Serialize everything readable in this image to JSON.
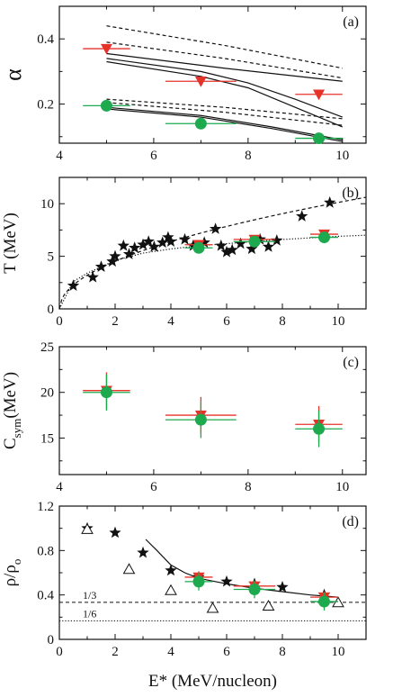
{
  "figure": {
    "colors": {
      "red": "#e63329",
      "green": "#1daa4f",
      "black": "#111111"
    }
  },
  "chart_data": [
    {
      "type": "scatter",
      "panel_label": "(a)",
      "ylabel": "α",
      "xlim": [
        4,
        10.5
      ],
      "ylim": [
        0.08,
        0.5
      ],
      "xticks": [
        4,
        6,
        8,
        10
      ],
      "yticks": [
        0.2,
        0.4
      ],
      "series": [
        {
          "marker": "triangle-down",
          "color": "red",
          "points": [
            {
              "x": 5.0,
              "y": 0.37,
              "xerr": 0.5
            },
            {
              "x": 7.0,
              "y": 0.27,
              "xerr": 0.75
            },
            {
              "x": 9.5,
              "y": 0.23,
              "xerr": 0.5
            }
          ]
        },
        {
          "marker": "circle",
          "color": "green",
          "points": [
            {
              "x": 5.0,
              "y": 0.195,
              "xerr": 0.5
            },
            {
              "x": 7.0,
              "y": 0.14,
              "xerr": 0.75
            },
            {
              "x": 9.5,
              "y": 0.095,
              "xerr": 0.5
            }
          ]
        }
      ],
      "curves": [
        {
          "style": "dashed",
          "x": [
            5.0,
            7.5,
            10.0
          ],
          "y": [
            0.44,
            0.38,
            0.31
          ]
        },
        {
          "style": "dashed",
          "x": [
            5.0,
            7.5,
            10.0
          ],
          "y": [
            0.39,
            0.34,
            0.28
          ]
        },
        {
          "style": "solid",
          "x": [
            5.0,
            7.5,
            10.0
          ],
          "y": [
            0.355,
            0.31,
            0.27
          ]
        },
        {
          "style": "solid",
          "x": [
            5.0,
            7.0,
            8.0,
            9.0,
            10.0
          ],
          "y": [
            0.34,
            0.3,
            0.265,
            0.215,
            0.16
          ]
        },
        {
          "style": "solid",
          "x": [
            5.0,
            7.0,
            8.0,
            9.0,
            10.0
          ],
          "y": [
            0.33,
            0.285,
            0.25,
            0.19,
            0.13
          ]
        },
        {
          "style": "dashed",
          "x": [
            5.0,
            7.5,
            10.0
          ],
          "y": [
            0.215,
            0.19,
            0.155
          ]
        },
        {
          "style": "dashed",
          "x": [
            5.0,
            7.5,
            10.0
          ],
          "y": [
            0.205,
            0.175,
            0.135
          ]
        },
        {
          "style": "solid",
          "x": [
            5.0,
            7.0,
            8.5,
            10.0
          ],
          "y": [
            0.19,
            0.165,
            0.13,
            0.09
          ]
        },
        {
          "style": "solid",
          "x": [
            5.0,
            7.0,
            8.5,
            10.0
          ],
          "y": [
            0.185,
            0.16,
            0.125,
            0.085
          ]
        }
      ]
    },
    {
      "type": "scatter",
      "panel_label": "(b)",
      "ylabel": "T (MeV)",
      "xlim": [
        0,
        11
      ],
      "ylim": [
        0,
        12.5
      ],
      "xticks": [
        0,
        2,
        4,
        6,
        8,
        10
      ],
      "yticks": [
        0,
        5,
        10
      ],
      "series": [
        {
          "marker": "star",
          "color": "black",
          "points": [
            {
              "x": 0.5,
              "y": 2.2
            },
            {
              "x": 1.2,
              "y": 3.0
            },
            {
              "x": 1.5,
              "y": 4.0
            },
            {
              "x": 1.9,
              "y": 4.5
            },
            {
              "x": 2.0,
              "y": 5.0
            },
            {
              "x": 2.3,
              "y": 6.0
            },
            {
              "x": 2.5,
              "y": 5.2
            },
            {
              "x": 2.7,
              "y": 5.8
            },
            {
              "x": 3.0,
              "y": 6.1
            },
            {
              "x": 3.2,
              "y": 6.4
            },
            {
              "x": 3.4,
              "y": 5.9
            },
            {
              "x": 3.7,
              "y": 6.3
            },
            {
              "x": 3.9,
              "y": 6.8
            },
            {
              "x": 4.0,
              "y": 6.4
            },
            {
              "x": 4.5,
              "y": 6.6
            },
            {
              "x": 4.8,
              "y": 6.0
            },
            {
              "x": 5.2,
              "y": 6.3
            },
            {
              "x": 5.6,
              "y": 7.6
            },
            {
              "x": 5.8,
              "y": 6.0
            },
            {
              "x": 6.0,
              "y": 5.4
            },
            {
              "x": 6.2,
              "y": 5.6
            },
            {
              "x": 6.5,
              "y": 6.2
            },
            {
              "x": 6.9,
              "y": 5.7
            },
            {
              "x": 7.2,
              "y": 6.6
            },
            {
              "x": 7.5,
              "y": 5.9
            },
            {
              "x": 7.8,
              "y": 6.5
            },
            {
              "x": 8.7,
              "y": 8.8
            },
            {
              "x": 9.7,
              "y": 10.1
            }
          ]
        },
        {
          "marker": "triangle-down",
          "color": "red",
          "points": [
            {
              "x": 5.0,
              "y": 6.1,
              "xerr": 0.5
            },
            {
              "x": 7.0,
              "y": 6.6,
              "xerr": 0.75
            },
            {
              "x": 9.5,
              "y": 7.1,
              "xerr": 0.5
            }
          ]
        },
        {
          "marker": "circle",
          "color": "green",
          "points": [
            {
              "x": 5.0,
              "y": 5.8,
              "xerr": 0.5
            },
            {
              "x": 7.0,
              "y": 6.4,
              "xerr": 0.75
            },
            {
              "x": 9.5,
              "y": 6.8,
              "xerr": 0.5
            }
          ]
        }
      ],
      "curves": [
        {
          "style": "dashed",
          "fn": "a*sqrt(x)",
          "a": 3.2,
          "xrange": [
            0,
            11
          ]
        },
        {
          "style": "dotted",
          "fn": "sqrt(a*x) saturating",
          "x": [
            0,
            0.5,
            1,
            2,
            3,
            4,
            5,
            6,
            7,
            8,
            9,
            10,
            11
          ],
          "y": [
            0,
            2.6,
            3.4,
            4.6,
            5.3,
            5.7,
            6.0,
            6.2,
            6.4,
            6.6,
            6.75,
            6.9,
            7.0
          ]
        }
      ]
    },
    {
      "type": "scatter",
      "panel_label": "(c)",
      "ylabel": "Csym(MeV)",
      "xlim": [
        4,
        10.5
      ],
      "ylim": [
        11,
        25
      ],
      "xticks": [
        4,
        6,
        8,
        10
      ],
      "yticks": [
        15,
        20,
        25
      ],
      "series": [
        {
          "marker": "triangle-down",
          "color": "red",
          "points": [
            {
              "x": 5.0,
              "y": 20.2,
              "xerr": 0.5,
              "yerr": 2.0
            },
            {
              "x": 7.0,
              "y": 17.5,
              "xerr": 0.75,
              "yerr": 2.0
            },
            {
              "x": 9.5,
              "y": 16.5,
              "xerr": 0.5,
              "yerr": 2.0
            }
          ]
        },
        {
          "marker": "circle",
          "color": "green",
          "points": [
            {
              "x": 5.0,
              "y": 20.0,
              "xerr": 0.5,
              "yerr": 2.0
            },
            {
              "x": 7.0,
              "y": 17.0,
              "xerr": 0.75,
              "yerr": 2.0
            },
            {
              "x": 9.5,
              "y": 16.0,
              "xerr": 0.5,
              "yerr": 2.0
            }
          ]
        }
      ]
    },
    {
      "type": "scatter",
      "panel_label": "(d)",
      "ylabel": "ρ/ρo",
      "xlabel": "E* (MeV/nucleon)",
      "xlim": [
        0,
        11
      ],
      "ylim": [
        0,
        1.2
      ],
      "xticks": [
        0,
        2,
        4,
        6,
        8,
        10
      ],
      "yticks": [
        0,
        0.4,
        0.8,
        1.2
      ],
      "ref_lines": [
        {
          "y": 0.333,
          "label": "1/3",
          "style": "dashed"
        },
        {
          "y": 0.1667,
          "label": "1/6",
          "style": "dotted"
        }
      ],
      "series": [
        {
          "marker": "star",
          "color": "black",
          "points": [
            {
              "x": 1.0,
              "y": 1.0
            },
            {
              "x": 2.0,
              "y": 0.96
            },
            {
              "x": 3.0,
              "y": 0.78
            },
            {
              "x": 4.0,
              "y": 0.62
            },
            {
              "x": 5.0,
              "y": 0.56
            },
            {
              "x": 6.0,
              "y": 0.52
            },
            {
              "x": 7.0,
              "y": 0.5
            },
            {
              "x": 8.0,
              "y": 0.47
            },
            {
              "x": 9.5,
              "y": 0.4
            }
          ]
        },
        {
          "marker": "triangle-open",
          "color": "black",
          "points": [
            {
              "x": 1.0,
              "y": 0.99
            },
            {
              "x": 2.5,
              "y": 0.63
            },
            {
              "x": 4.0,
              "y": 0.44
            },
            {
              "x": 5.5,
              "y": 0.28
            },
            {
              "x": 7.5,
              "y": 0.3
            },
            {
              "x": 10.0,
              "y": 0.33
            }
          ]
        },
        {
          "marker": "triangle-down",
          "color": "red",
          "points": [
            {
              "x": 5.0,
              "y": 0.56,
              "xerr": 0.5,
              "yerr": 0.05
            },
            {
              "x": 7.0,
              "y": 0.48,
              "xerr": 0.75,
              "yerr": 0.05
            },
            {
              "x": 9.5,
              "y": 0.38,
              "xerr": 0.5,
              "yerr": 0.05
            }
          ]
        },
        {
          "marker": "circle",
          "color": "green",
          "points": [
            {
              "x": 5.0,
              "y": 0.52,
              "xerr": 0.5,
              "yerr": 0.08
            },
            {
              "x": 7.0,
              "y": 0.45,
              "xerr": 0.75,
              "yerr": 0.08
            },
            {
              "x": 9.5,
              "y": 0.34,
              "xerr": 0.5,
              "yerr": 0.08
            }
          ]
        }
      ],
      "curves": [
        {
          "style": "solid",
          "x": [
            3.1,
            3.5,
            4.0,
            4.5,
            5.0,
            6.0,
            7.0,
            8.0,
            9.0,
            10.0
          ],
          "y": [
            0.9,
            0.8,
            0.67,
            0.6,
            0.55,
            0.5,
            0.46,
            0.43,
            0.4,
            0.38
          ]
        }
      ]
    }
  ]
}
